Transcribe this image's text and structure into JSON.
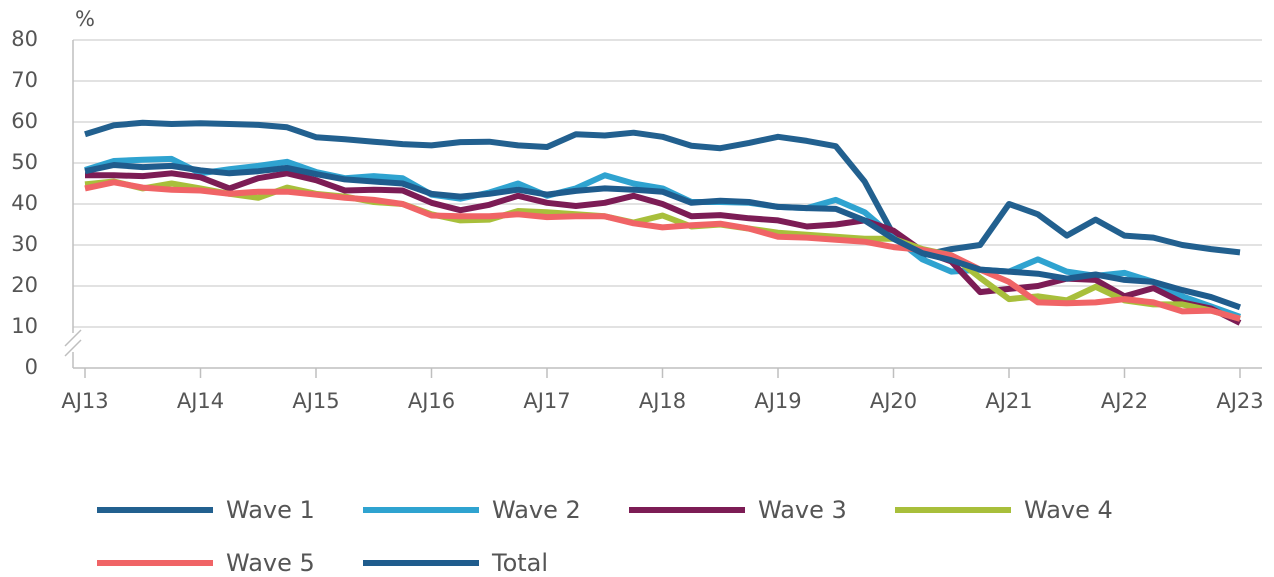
{
  "chart_data": {
    "type": "line",
    "y_label": "%",
    "categories": [
      "AJ13",
      null,
      null,
      null,
      "AJ14",
      null,
      null,
      null,
      "AJ15",
      null,
      null,
      null,
      "AJ16",
      null,
      null,
      null,
      "AJ17",
      null,
      null,
      null,
      "AJ18",
      null,
      null,
      null,
      "AJ19",
      null,
      null,
      null,
      "AJ20",
      null,
      null,
      null,
      "AJ21",
      null,
      null,
      null,
      "AJ22",
      null,
      null,
      null,
      "AJ23"
    ],
    "ylim": [
      0,
      80
    ],
    "yticks": [
      0,
      10,
      20,
      30,
      40,
      50,
      60,
      70,
      80
    ],
    "grid": true,
    "y_axis_break": true,
    "series": [
      {
        "name": "Wave 1",
        "color": "#22608f",
        "values": [
          57,
          59.2,
          59.8,
          59.5,
          59.7,
          59.5,
          59.3,
          58.7,
          56.3,
          55.8,
          55.2,
          54.6,
          54.3,
          55.1,
          55.2,
          54.3,
          53.9,
          57,
          56.7,
          57.4,
          56.4,
          54.2,
          53.6,
          54.9,
          56.4,
          55.4,
          54.1,
          45.5,
          32.5,
          27.5,
          29,
          30,
          40,
          37.5,
          32.3,
          36.2,
          32.3,
          31.8,
          30,
          29,
          28.2
        ]
      },
      {
        "name": "Wave 2",
        "color": "#2fa3d0",
        "values": [
          48.3,
          50.5,
          50.8,
          51,
          47.5,
          48.5,
          49.3,
          50.3,
          47.8,
          46.3,
          46.8,
          46.3,
          42.3,
          41.3,
          42.8,
          45,
          42,
          43.8,
          47,
          45,
          43.8,
          40.5,
          40.5,
          40.3,
          39.3,
          39,
          41,
          38,
          32,
          26.5,
          23.5,
          24,
          23.5,
          26.5,
          23.5,
          22.5,
          23.2,
          21,
          17.5,
          15,
          12.5
        ]
      },
      {
        "name": "Wave 3",
        "color": "#7c1c55",
        "values": [
          47,
          47,
          46.8,
          47.5,
          46.5,
          43.8,
          46.3,
          47.5,
          45.8,
          43.3,
          43.5,
          43.3,
          40.3,
          38.5,
          39.8,
          42,
          40.3,
          39.5,
          40.3,
          42,
          40,
          37,
          37.3,
          36.5,
          36,
          34.5,
          35,
          36,
          33.5,
          28.5,
          26,
          18.5,
          19.3,
          20,
          21.8,
          21.5,
          17.5,
          19.5,
          16,
          14.5,
          11
        ]
      },
      {
        "name": "Wave 4",
        "color": "#a8bf3b",
        "values": [
          44.8,
          45.5,
          43.8,
          45,
          43.8,
          42.5,
          41.5,
          44,
          42.5,
          41.8,
          40.5,
          40,
          37.5,
          36,
          36.2,
          38.3,
          38,
          37.5,
          37,
          35.5,
          37.2,
          34.5,
          35,
          34,
          33,
          32.5,
          32,
          31.5,
          31.5,
          29,
          27.5,
          22,
          16.8,
          17.5,
          16.5,
          19.8,
          16.5,
          15.5,
          15.5,
          14,
          12
        ]
      },
      {
        "name": "Wave 5",
        "color": "#f06466",
        "values": [
          43.8,
          45.3,
          44,
          43.5,
          43.3,
          42.5,
          43,
          43,
          42.3,
          41.5,
          41,
          40,
          37.2,
          37,
          37,
          37.5,
          36.8,
          37,
          37,
          35.3,
          34.3,
          34.8,
          35.2,
          34,
          32,
          31.8,
          31.3,
          30.8,
          29.5,
          28.8,
          27.5,
          24,
          21,
          16,
          15.8,
          16,
          16.8,
          16,
          13.8,
          14,
          12
        ]
      },
      {
        "name": "Total",
        "color": "#1f5c8d",
        "values": [
          48,
          49.5,
          49,
          49.3,
          48.2,
          47.5,
          48,
          48.8,
          47.3,
          46,
          45.5,
          45,
          42.5,
          41.8,
          42.5,
          43.5,
          42.3,
          43.2,
          43.8,
          43.5,
          43,
          40.3,
          40.8,
          40.5,
          39.3,
          39,
          38.8,
          36,
          31.5,
          28,
          26.3,
          24,
          23.5,
          23,
          21.8,
          22.8,
          21.5,
          21,
          19,
          17.3,
          14.8
        ]
      }
    ]
  }
}
